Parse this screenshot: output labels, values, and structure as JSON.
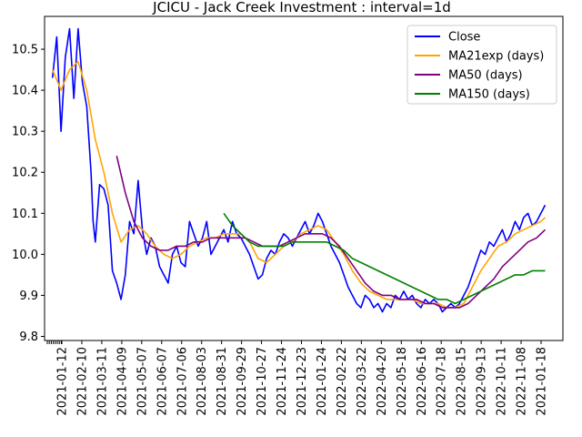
{
  "chart_data": {
    "type": "line",
    "title": "JCICU - Jack Creek Investment : interval=1d",
    "xlabel": "",
    "ylabel": "",
    "x_tick_labels": [
      "2021-01-12",
      "2021-02-10",
      "2021-03-11",
      "2021-04-09",
      "2021-05-07",
      "2021-06-07",
      "2021-07-06",
      "2021-08-03",
      "2021-08-31",
      "2021-09-29",
      "2021-10-27",
      "2021-11-24",
      "2021-12-23",
      "2021-01-24",
      "2022-02-22",
      "2022-03-22",
      "2022-04-20",
      "2022-05-18",
      "2022-06-16",
      "2022-07-18",
      "2022-08-15",
      "2022-09-13",
      "2022-10-11",
      "2022-11-08",
      "2021-01-18"
    ],
    "y_ticks": [
      9.8,
      9.9,
      10.0,
      10.1,
      10.2,
      10.3,
      10.4,
      10.5
    ],
    "y_tick_labels": [
      "9.8",
      "9.9",
      "10.0",
      "10.1",
      "10.2",
      "10.3",
      "10.4",
      "10.5"
    ],
    "ylim": [
      9.79,
      10.58
    ],
    "x_range_days": [
      -6,
      520
    ],
    "grid": false,
    "legend_position": "upper-right",
    "series": [
      {
        "name": "Close",
        "color": "#0000ff",
        "points": [
          [
            0,
            10.43
          ],
          [
            2,
            10.53
          ],
          [
            4,
            10.3
          ],
          [
            6,
            10.48
          ],
          [
            8,
            10.55
          ],
          [
            10,
            10.38
          ],
          [
            12,
            10.55
          ],
          [
            14,
            10.42
          ],
          [
            16,
            10.36
          ],
          [
            18,
            10.2
          ],
          [
            19,
            10.08
          ],
          [
            20,
            10.03
          ],
          [
            22,
            10.17
          ],
          [
            24,
            10.16
          ],
          [
            26,
            10.12
          ],
          [
            28,
            9.96
          ],
          [
            30,
            9.93
          ],
          [
            32,
            9.89
          ],
          [
            34,
            9.95
          ],
          [
            36,
            10.08
          ],
          [
            38,
            10.05
          ],
          [
            40,
            10.18
          ],
          [
            42,
            10.06
          ],
          [
            44,
            10.0
          ],
          [
            46,
            10.04
          ],
          [
            48,
            10.02
          ],
          [
            50,
            9.97
          ],
          [
            52,
            9.95
          ],
          [
            54,
            9.93
          ],
          [
            56,
            10.0
          ],
          [
            58,
            10.02
          ],
          [
            60,
            9.98
          ],
          [
            62,
            9.97
          ],
          [
            64,
            10.08
          ],
          [
            66,
            10.05
          ],
          [
            68,
            10.02
          ],
          [
            70,
            10.04
          ],
          [
            72,
            10.08
          ],
          [
            74,
            10.0
          ],
          [
            76,
            10.02
          ],
          [
            78,
            10.04
          ],
          [
            80,
            10.06
          ],
          [
            82,
            10.03
          ],
          [
            84,
            10.08
          ],
          [
            86,
            10.05
          ],
          [
            88,
            10.04
          ],
          [
            90,
            10.02
          ],
          [
            92,
            10.0
          ],
          [
            94,
            9.97
          ],
          [
            96,
            9.94
          ],
          [
            98,
            9.95
          ],
          [
            100,
            9.99
          ],
          [
            102,
            10.01
          ],
          [
            104,
            10.0
          ],
          [
            106,
            10.03
          ],
          [
            108,
            10.05
          ],
          [
            110,
            10.04
          ],
          [
            112,
            10.02
          ],
          [
            114,
            10.04
          ],
          [
            116,
            10.06
          ],
          [
            118,
            10.08
          ],
          [
            120,
            10.05
          ],
          [
            122,
            10.07
          ],
          [
            124,
            10.1
          ],
          [
            126,
            10.08
          ],
          [
            128,
            10.05
          ],
          [
            130,
            10.02
          ],
          [
            132,
            10.0
          ],
          [
            134,
            9.98
          ],
          [
            136,
            9.95
          ],
          [
            138,
            9.92
          ],
          [
            140,
            9.9
          ],
          [
            142,
            9.88
          ],
          [
            144,
            9.87
          ],
          [
            146,
            9.9
          ],
          [
            148,
            9.89
          ],
          [
            150,
            9.87
          ],
          [
            152,
            9.88
          ],
          [
            154,
            9.86
          ],
          [
            156,
            9.88
          ],
          [
            158,
            9.87
          ],
          [
            160,
            9.9
          ],
          [
            162,
            9.89
          ],
          [
            164,
            9.91
          ],
          [
            166,
            9.89
          ],
          [
            168,
            9.9
          ],
          [
            170,
            9.88
          ],
          [
            172,
            9.87
          ],
          [
            174,
            9.89
          ],
          [
            176,
            9.88
          ],
          [
            178,
            9.89
          ],
          [
            180,
            9.88
          ],
          [
            182,
            9.86
          ],
          [
            184,
            9.87
          ],
          [
            186,
            9.88
          ],
          [
            188,
            9.87
          ],
          [
            190,
            9.88
          ],
          [
            192,
            9.9
          ],
          [
            194,
            9.92
          ],
          [
            196,
            9.95
          ],
          [
            198,
            9.98
          ],
          [
            200,
            10.01
          ],
          [
            202,
            10.0
          ],
          [
            204,
            10.03
          ],
          [
            206,
            10.02
          ],
          [
            208,
            10.04
          ],
          [
            210,
            10.06
          ],
          [
            212,
            10.03
          ],
          [
            214,
            10.05
          ],
          [
            216,
            10.08
          ],
          [
            218,
            10.06
          ],
          [
            220,
            10.09
          ],
          [
            222,
            10.1
          ],
          [
            224,
            10.07
          ],
          [
            226,
            10.08
          ],
          [
            228,
            10.1
          ],
          [
            230,
            10.12
          ]
        ]
      },
      {
        "name": "MA21exp (days)",
        "color": "#ffa500",
        "points": [
          [
            0,
            10.45
          ],
          [
            4,
            10.4
          ],
          [
            8,
            10.45
          ],
          [
            12,
            10.47
          ],
          [
            16,
            10.4
          ],
          [
            20,
            10.28
          ],
          [
            24,
            10.2
          ],
          [
            28,
            10.1
          ],
          [
            32,
            10.03
          ],
          [
            36,
            10.06
          ],
          [
            40,
            10.07
          ],
          [
            44,
            10.05
          ],
          [
            48,
            10.02
          ],
          [
            52,
            10.0
          ],
          [
            56,
            9.99
          ],
          [
            60,
            10.0
          ],
          [
            64,
            10.02
          ],
          [
            68,
            10.03
          ],
          [
            72,
            10.04
          ],
          [
            76,
            10.04
          ],
          [
            80,
            10.05
          ],
          [
            84,
            10.05
          ],
          [
            88,
            10.05
          ],
          [
            92,
            10.03
          ],
          [
            96,
            9.99
          ],
          [
            100,
            9.98
          ],
          [
            104,
            10.0
          ],
          [
            108,
            10.02
          ],
          [
            112,
            10.03
          ],
          [
            116,
            10.05
          ],
          [
            120,
            10.06
          ],
          [
            124,
            10.07
          ],
          [
            128,
            10.06
          ],
          [
            132,
            10.03
          ],
          [
            136,
            10.0
          ],
          [
            140,
            9.96
          ],
          [
            144,
            9.93
          ],
          [
            148,
            9.91
          ],
          [
            152,
            9.9
          ],
          [
            156,
            9.89
          ],
          [
            160,
            9.89
          ],
          [
            164,
            9.89
          ],
          [
            168,
            9.89
          ],
          [
            172,
            9.88
          ],
          [
            176,
            9.88
          ],
          [
            180,
            9.88
          ],
          [
            184,
            9.87
          ],
          [
            188,
            9.87
          ],
          [
            192,
            9.88
          ],
          [
            196,
            9.92
          ],
          [
            200,
            9.96
          ],
          [
            204,
            9.99
          ],
          [
            208,
            10.02
          ],
          [
            212,
            10.03
          ],
          [
            216,
            10.05
          ],
          [
            220,
            10.06
          ],
          [
            224,
            10.07
          ],
          [
            228,
            10.08
          ],
          [
            230,
            10.09
          ]
        ]
      },
      {
        "name": "MA50 (days)",
        "color": "#800080",
        "points": [
          [
            30,
            10.24
          ],
          [
            34,
            10.15
          ],
          [
            38,
            10.08
          ],
          [
            42,
            10.04
          ],
          [
            46,
            10.02
          ],
          [
            50,
            10.01
          ],
          [
            54,
            10.01
          ],
          [
            58,
            10.02
          ],
          [
            62,
            10.02
          ],
          [
            66,
            10.03
          ],
          [
            70,
            10.03
          ],
          [
            74,
            10.04
          ],
          [
            78,
            10.04
          ],
          [
            82,
            10.04
          ],
          [
            86,
            10.04
          ],
          [
            90,
            10.04
          ],
          [
            94,
            10.03
          ],
          [
            98,
            10.02
          ],
          [
            102,
            10.02
          ],
          [
            106,
            10.02
          ],
          [
            110,
            10.03
          ],
          [
            114,
            10.04
          ],
          [
            118,
            10.05
          ],
          [
            122,
            10.05
          ],
          [
            126,
            10.05
          ],
          [
            130,
            10.04
          ],
          [
            134,
            10.02
          ],
          [
            138,
            9.99
          ],
          [
            142,
            9.96
          ],
          [
            146,
            9.93
          ],
          [
            150,
            9.91
          ],
          [
            154,
            9.9
          ],
          [
            158,
            9.9
          ],
          [
            162,
            9.89
          ],
          [
            166,
            9.89
          ],
          [
            170,
            9.89
          ],
          [
            174,
            9.88
          ],
          [
            178,
            9.88
          ],
          [
            182,
            9.87
          ],
          [
            186,
            9.87
          ],
          [
            190,
            9.87
          ],
          [
            194,
            9.88
          ],
          [
            198,
            9.9
          ],
          [
            202,
            9.92
          ],
          [
            206,
            9.94
          ],
          [
            210,
            9.97
          ],
          [
            214,
            9.99
          ],
          [
            218,
            10.01
          ],
          [
            222,
            10.03
          ],
          [
            226,
            10.04
          ],
          [
            230,
            10.06
          ]
        ]
      },
      {
        "name": "MA150 (days)",
        "color": "#008000",
        "points": [
          [
            80,
            10.1
          ],
          [
            84,
            10.07
          ],
          [
            88,
            10.05
          ],
          [
            92,
            10.03
          ],
          [
            96,
            10.02
          ],
          [
            100,
            10.02
          ],
          [
            104,
            10.02
          ],
          [
            108,
            10.02
          ],
          [
            112,
            10.03
          ],
          [
            116,
            10.03
          ],
          [
            120,
            10.03
          ],
          [
            124,
            10.03
          ],
          [
            128,
            10.03
          ],
          [
            132,
            10.02
          ],
          [
            136,
            10.01
          ],
          [
            140,
            9.99
          ],
          [
            144,
            9.98
          ],
          [
            148,
            9.97
          ],
          [
            152,
            9.96
          ],
          [
            156,
            9.95
          ],
          [
            160,
            9.94
          ],
          [
            164,
            9.93
          ],
          [
            168,
            9.92
          ],
          [
            172,
            9.91
          ],
          [
            176,
            9.9
          ],
          [
            180,
            9.89
          ],
          [
            184,
            9.89
          ],
          [
            188,
            9.88
          ],
          [
            192,
            9.89
          ],
          [
            196,
            9.9
          ],
          [
            200,
            9.91
          ],
          [
            204,
            9.92
          ],
          [
            208,
            9.93
          ],
          [
            212,
            9.94
          ],
          [
            216,
            9.95
          ],
          [
            220,
            9.95
          ],
          [
            224,
            9.96
          ],
          [
            228,
            9.96
          ],
          [
            230,
            9.96
          ]
        ]
      }
    ]
  }
}
